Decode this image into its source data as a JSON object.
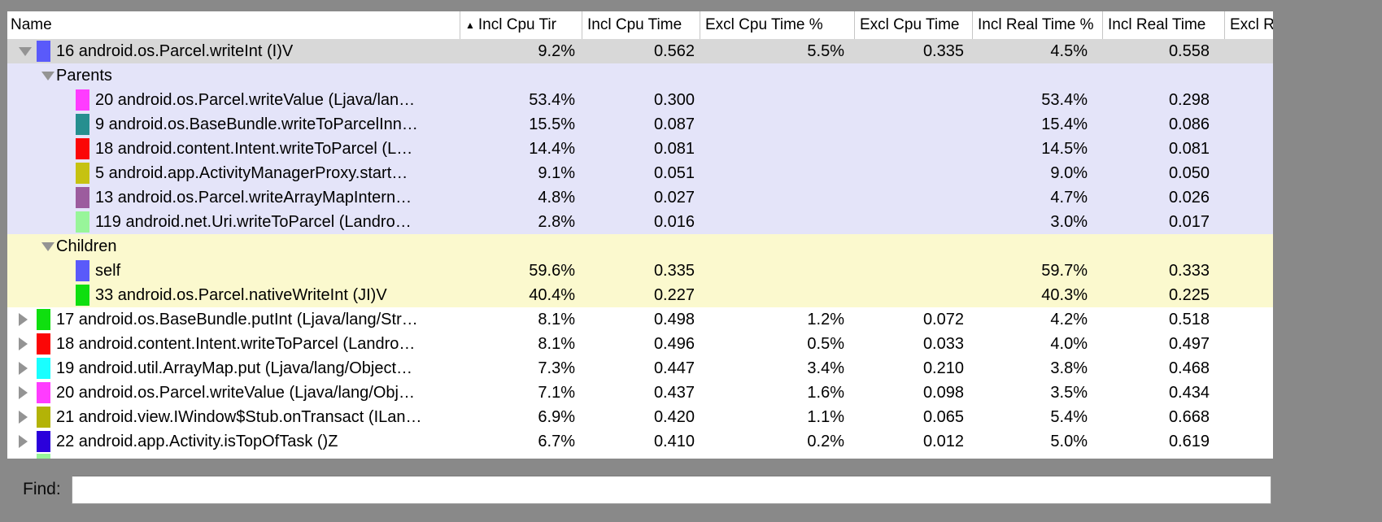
{
  "icons": {
    "sort_ascending": "▲"
  },
  "colors": {
    "frame": "#898989",
    "selected_row_bg": "#d8d8d8",
    "parents_section_bg": "#e4e4f9",
    "children_section_bg": "#fbf9ce",
    "row_bg": "#ffffff"
  },
  "table": {
    "columns": [
      {
        "label": "Name"
      },
      {
        "label": "Incl Cpu Tir",
        "sorted": "ascending"
      },
      {
        "label": "Incl Cpu Time"
      },
      {
        "label": "Excl Cpu Time %"
      },
      {
        "label": "Excl Cpu Time"
      },
      {
        "label": "Incl Real Time %"
      },
      {
        "label": "Incl Real Time"
      },
      {
        "label": "Excl Real"
      }
    ],
    "rows": [
      {
        "kind": "method",
        "indent": 0,
        "expander": "open",
        "swatch": "#5a5afa",
        "bg": "selected",
        "name": "16 android.os.Parcel.writeInt (I)V",
        "values": [
          "9.2%",
          "0.562",
          "5.5%",
          "0.335",
          "4.5%",
          "0.558"
        ]
      },
      {
        "kind": "group",
        "indent": 1,
        "expander": "open",
        "bg": "parents",
        "name": "Parents",
        "values": []
      },
      {
        "kind": "method",
        "indent": 2,
        "swatch": "#ff3cff",
        "bg": "parents",
        "name": "20 android.os.Parcel.writeValue (Ljava/lan…",
        "values": [
          "53.4%",
          "0.300",
          "",
          "",
          "53.4%",
          "0.298"
        ]
      },
      {
        "kind": "method",
        "indent": 2,
        "swatch": "#268f8f",
        "bg": "parents",
        "name": "9 android.os.BaseBundle.writeToParcelInn…",
        "values": [
          "15.5%",
          "0.087",
          "",
          "",
          "15.4%",
          "0.086"
        ]
      },
      {
        "kind": "method",
        "indent": 2,
        "swatch": "#fb0606",
        "bg": "parents",
        "name": "18 android.content.Intent.writeToParcel (L…",
        "values": [
          "14.4%",
          "0.081",
          "",
          "",
          "14.5%",
          "0.081"
        ]
      },
      {
        "kind": "method",
        "indent": 2,
        "swatch": "#c6c211",
        "bg": "parents",
        "name": "5 android.app.ActivityManagerProxy.start…",
        "values": [
          "9.1%",
          "0.051",
          "",
          "",
          "9.0%",
          "0.050"
        ]
      },
      {
        "kind": "method",
        "indent": 2,
        "swatch": "#9c5c9e",
        "bg": "parents",
        "name": "13 android.os.Parcel.writeArrayMapIntern…",
        "values": [
          "4.8%",
          "0.027",
          "",
          "",
          "4.7%",
          "0.026"
        ]
      },
      {
        "kind": "method",
        "indent": 2,
        "swatch": "#98f59a",
        "bg": "parents",
        "name": "119 android.net.Uri.writeToParcel (Landro…",
        "values": [
          "2.8%",
          "0.016",
          "",
          "",
          "3.0%",
          "0.017"
        ]
      },
      {
        "kind": "group",
        "indent": 1,
        "expander": "open",
        "bg": "children",
        "name": "Children",
        "values": []
      },
      {
        "kind": "method",
        "indent": 2,
        "swatch": "#5a5afa",
        "bg": "children",
        "name": "self",
        "values": [
          "59.6%",
          "0.335",
          "",
          "",
          "59.7%",
          "0.333"
        ]
      },
      {
        "kind": "method",
        "indent": 2,
        "swatch": "#0fdf0f",
        "bg": "children",
        "name": "33 android.os.Parcel.nativeWriteInt (JI)V",
        "values": [
          "40.4%",
          "0.227",
          "",
          "",
          "40.3%",
          "0.225"
        ]
      },
      {
        "kind": "method",
        "indent": 0,
        "expander": "closed",
        "swatch": "#0fdf0f",
        "bg": "white",
        "name": "17 android.os.BaseBundle.putInt (Ljava/lang/Str…",
        "values": [
          "8.1%",
          "0.498",
          "1.2%",
          "0.072",
          "4.2%",
          "0.518"
        ]
      },
      {
        "kind": "method",
        "indent": 0,
        "expander": "closed",
        "swatch": "#fb0606",
        "bg": "white",
        "name": "18 android.content.Intent.writeToParcel (Landro…",
        "values": [
          "8.1%",
          "0.496",
          "0.5%",
          "0.033",
          "4.0%",
          "0.497"
        ]
      },
      {
        "kind": "method",
        "indent": 0,
        "expander": "closed",
        "swatch": "#19ffff",
        "bg": "white",
        "name": "19 android.util.ArrayMap.put (Ljava/lang/Object…",
        "values": [
          "7.3%",
          "0.447",
          "3.4%",
          "0.210",
          "3.8%",
          "0.468"
        ]
      },
      {
        "kind": "method",
        "indent": 0,
        "expander": "closed",
        "swatch": "#ff3cff",
        "bg": "white",
        "name": "20 android.os.Parcel.writeValue (Ljava/lang/Obj…",
        "values": [
          "7.1%",
          "0.437",
          "1.6%",
          "0.098",
          "3.5%",
          "0.434"
        ]
      },
      {
        "kind": "method",
        "indent": 0,
        "expander": "closed",
        "swatch": "#b3b307",
        "bg": "white",
        "name": "21 android.view.IWindow$Stub.onTransact (ILan…",
        "values": [
          "6.9%",
          "0.420",
          "1.1%",
          "0.065",
          "5.4%",
          "0.668"
        ]
      },
      {
        "kind": "method",
        "indent": 0,
        "expander": "closed",
        "swatch": "#2b00db",
        "bg": "white",
        "name": "22 android.app.Activity.isTopOfTask ()Z",
        "values": [
          "6.7%",
          "0.410",
          "0.2%",
          "0.012",
          "5.0%",
          "0.619"
        ]
      },
      {
        "kind": "sliver",
        "bg": "white",
        "swatch": "#98f59a",
        "name": "",
        "values": []
      }
    ]
  },
  "find": {
    "label": "Find:",
    "value": ""
  }
}
